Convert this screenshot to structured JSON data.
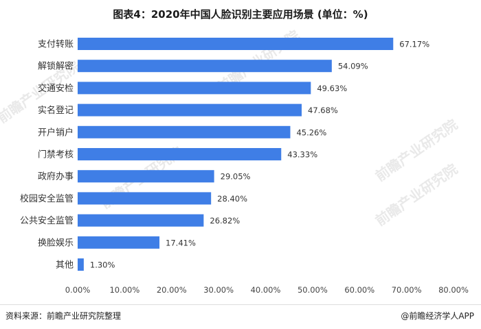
{
  "chart_data": {
    "type": "bar",
    "orientation": "horizontal",
    "title": "图表4：2020年中国人脸识别主要应用场景 (单位：%)",
    "categories": [
      "支付转账",
      "解锁解密",
      "交通安检",
      "实名登记",
      "开户销户",
      "门禁考核",
      "政府办事",
      "校园安全监管",
      "公共安全监管",
      "换脸娱乐",
      "其他"
    ],
    "values": [
      67.17,
      54.09,
      49.63,
      47.68,
      45.26,
      43.33,
      29.05,
      28.4,
      26.82,
      17.41,
      1.3
    ],
    "value_labels": [
      "67.17%",
      "54.09%",
      "49.63%",
      "47.68%",
      "45.26%",
      "43.33%",
      "29.05%",
      "28.40%",
      "26.82%",
      "17.41%",
      "1.30%"
    ],
    "xlim": [
      0,
      80
    ],
    "xticks": [
      0,
      10,
      20,
      30,
      40,
      50,
      60,
      70,
      80
    ],
    "xtick_labels": [
      "0.00%",
      "10.00%",
      "20.00%",
      "30.00%",
      "40.00%",
      "50.00%",
      "60.00%",
      "70.00%",
      "80.00%"
    ],
    "grid": false,
    "bar_color": "#3f7ee6",
    "xlabel": "",
    "ylabel": ""
  },
  "footer": {
    "source": "资料来源：前瞻产业研究院整理",
    "brand": "@前瞻经济学人APP"
  },
  "watermark": {
    "text": "前瞻产业研究院",
    "color": "#e9e9e9"
  }
}
